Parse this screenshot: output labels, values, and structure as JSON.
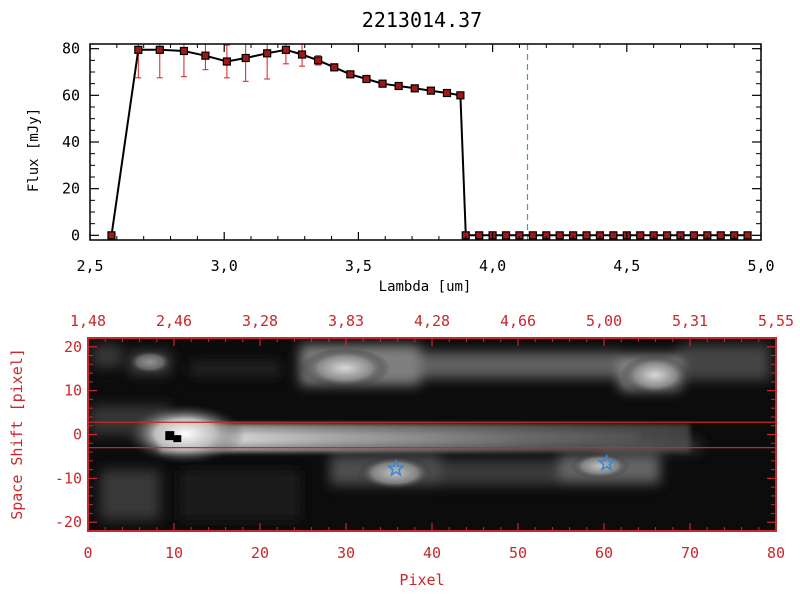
{
  "chart_data": [
    {
      "type": "line",
      "title": "2213014.37",
      "xlabel": "Lambda [um]",
      "ylabel": "Flux [mJy]",
      "xlim": [
        2.5,
        5.0
      ],
      "ylim": [
        -2,
        82
      ],
      "xticks": [
        "2.5",
        "3.0",
        "3.5",
        "4.0",
        "4.5",
        "5.0"
      ],
      "yticks": [
        "0",
        "20",
        "40",
        "60",
        "80"
      ],
      "marker_color": "#a01818",
      "errorbar_color": "#d62020",
      "line_color": "#000000",
      "vline_x": 4.13,
      "vline_color": "#2aa8b4",
      "series": [
        {
          "x": [
            2.58,
            2.68,
            2.76,
            2.85,
            2.93,
            3.01,
            3.08,
            3.16,
            3.23,
            3.29,
            3.35,
            3.41,
            3.47,
            3.53,
            3.59,
            3.65,
            3.71,
            3.77,
            3.83,
            3.88,
            3.9,
            3.95,
            4.0,
            4.05,
            4.1,
            4.15,
            4.2,
            4.25,
            4.3,
            4.35,
            4.4,
            4.45,
            4.5,
            4.55,
            4.6,
            4.65,
            4.7,
            4.75,
            4.8,
            4.85,
            4.9,
            4.95
          ],
          "y": [
            0,
            79.5,
            79.5,
            79,
            77,
            74.5,
            76,
            78,
            79.5,
            77.5,
            75,
            72,
            69,
            67,
            65,
            64,
            63,
            62,
            61,
            60,
            0,
            0,
            0,
            0,
            0,
            0,
            0,
            0,
            0,
            0,
            0,
            0,
            0,
            0,
            0,
            0,
            0,
            0,
            0,
            0,
            0,
            0
          ],
          "err": [
            0,
            12,
            12,
            11,
            6,
            7,
            10,
            11,
            6,
            5,
            2,
            1,
            0.5,
            0.5,
            0.5,
            0.5,
            0.5,
            0.5,
            0.5,
            0.5,
            0,
            0,
            0,
            0,
            0,
            0,
            0,
            0,
            0,
            0,
            0,
            0,
            0,
            0,
            0,
            0,
            0,
            0,
            0,
            0,
            0,
            0
          ]
        }
      ]
    },
    {
      "type": "heatmap",
      "xlabel": "Pixel",
      "ylabel": "Space Shift [pixel]",
      "xlim": [
        0,
        80
      ],
      "ylim": [
        -22,
        22
      ],
      "xticks": [
        "0",
        "10",
        "20",
        "30",
        "40",
        "50",
        "60",
        "70",
        "80"
      ],
      "yticks": [
        "-20",
        "-10",
        "0",
        "10",
        "20"
      ],
      "top_ticks": [
        "1.48",
        "2.46",
        "3.28",
        "3.83",
        "4.28",
        "4.66",
        "5.00",
        "5.31",
        "5.55"
      ],
      "frame_color": "#c8282c",
      "slit_lines_y": [
        2.8,
        -3.0
      ],
      "star_color": "#3a86d8",
      "stars": [
        {
          "x": 35.8,
          "y": -7.8
        },
        {
          "x": 60.3,
          "y": -6.6
        }
      ],
      "black_marker": {
        "x": 9.8,
        "y": -0.6
      }
    }
  ]
}
